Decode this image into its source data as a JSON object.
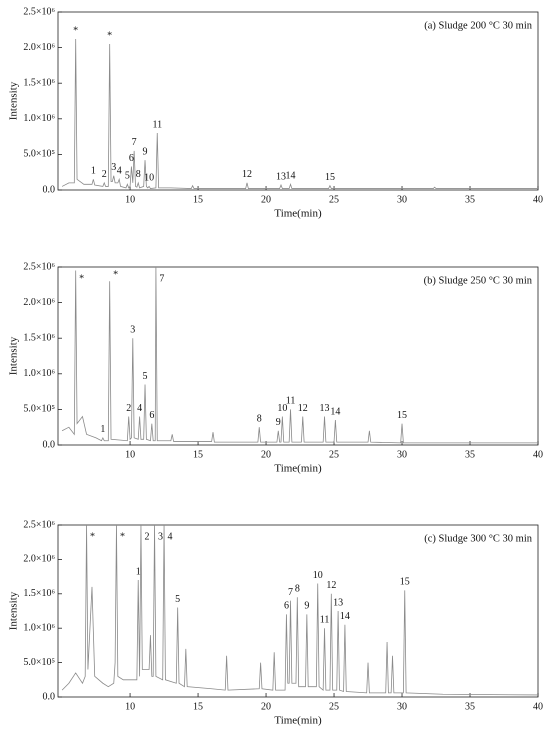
{
  "chart_data": [
    {
      "type": "line",
      "title": "(a) Sludge 200 °C 30 min",
      "x_label": "Time(min)",
      "y_label": "Intensity",
      "color": "#8a8a8a",
      "xlim": [
        4.7,
        40
      ],
      "xticks": [
        10,
        15,
        20,
        25,
        30,
        35,
        40
      ],
      "ylim": [
        0,
        2500000
      ],
      "yticks": [
        {
          "value": 0,
          "label": "0.0"
        },
        {
          "value": 500000,
          "label": "5.0×10⁵"
        },
        {
          "value": 1000000,
          "label": "1.0×10⁶"
        },
        {
          "value": 1500000,
          "label": "1.5×10⁶"
        },
        {
          "value": 2000000,
          "label": "2.0×10⁶"
        },
        {
          "value": 2500000,
          "label": "2.5×10⁶"
        }
      ],
      "x": [
        5,
        5.5,
        5.9,
        6,
        6.1,
        6.6,
        7.2,
        7.3,
        7.4,
        8,
        8.1,
        8.2,
        8.4,
        8.5,
        8.6,
        8.7,
        8.8,
        8.9,
        9.1,
        9.2,
        9.3,
        9.7,
        9.8,
        9.9,
        10,
        10.1,
        10.2,
        10.3,
        10.4,
        10.5,
        10.6,
        10.7,
        11,
        11.1,
        11.2,
        11.3,
        11.4,
        11.5,
        11.9,
        12,
        12.1,
        13,
        14.5,
        14.6,
        14.7,
        16,
        18.5,
        18.6,
        18.7,
        21,
        21.1,
        21.2,
        21.7,
        21.8,
        21.9,
        24.6,
        24.7,
        24.8,
        28,
        32.3,
        32.4,
        32.5,
        40
      ],
      "values": [
        50000,
        100000,
        100000,
        2120000,
        150000,
        80000,
        80000,
        150000,
        70000,
        50000,
        100000,
        50000,
        50000,
        2050000,
        120000,
        120000,
        200000,
        100000,
        100000,
        150000,
        50000,
        30000,
        80000,
        30000,
        50000,
        330000,
        100000,
        550000,
        50000,
        40000,
        100000,
        30000,
        50000,
        420000,
        50000,
        30000,
        50000,
        20000,
        30000,
        800000,
        30000,
        30000,
        20000,
        60000,
        20000,
        20000,
        20000,
        100000,
        20000,
        20000,
        70000,
        20000,
        20000,
        80000,
        20000,
        20000,
        60000,
        20000,
        20000,
        20000,
        40000,
        20000,
        20000
      ],
      "annotations": [
        {
          "text": "*",
          "x": 6,
          "y": 2120000
        },
        {
          "text": "*",
          "x": 8.5,
          "y": 2050000
        },
        {
          "text": "1",
          "x": 7.3,
          "y": 150000
        },
        {
          "text": "2",
          "x": 8.1,
          "y": 100000
        },
        {
          "text": "3",
          "x": 8.8,
          "y": 200000
        },
        {
          "text": "4",
          "x": 9.2,
          "y": 150000
        },
        {
          "text": "5",
          "x": 9.8,
          "y": 80000
        },
        {
          "text": "6",
          "x": 10.1,
          "y": 330000
        },
        {
          "text": "7",
          "x": 10.3,
          "y": 550000
        },
        {
          "text": "8",
          "x": 10.6,
          "y": 100000
        },
        {
          "text": "9",
          "x": 11.1,
          "y": 420000
        },
        {
          "text": "10",
          "x": 11.4,
          "y": 50000
        },
        {
          "text": "11",
          "x": 12,
          "y": 800000
        },
        {
          "text": "12",
          "x": 18.6,
          "y": 100000
        },
        {
          "text": "13",
          "x": 21.1,
          "y": 70000
        },
        {
          "text": "14",
          "x": 21.8,
          "y": 80000
        },
        {
          "text": "15",
          "x": 24.7,
          "y": 60000
        }
      ]
    },
    {
      "type": "line",
      "title": "(b) Sludge 250 °C 30 min",
      "x_label": "Time(min)",
      "y_label": "Intensity",
      "color": "#8a8a8a",
      "xlim": [
        4.7,
        40
      ],
      "xticks": [
        10,
        15,
        20,
        25,
        30,
        35,
        40
      ],
      "ylim": [
        0,
        2500000
      ],
      "yticks": [
        {
          "value": 0,
          "label": "0.0"
        },
        {
          "value": 500000,
          "label": "5.0×10⁵"
        },
        {
          "value": 1000000,
          "label": "1.0×10⁶"
        },
        {
          "value": 1500000,
          "label": "1.5×10⁶"
        },
        {
          "value": 2000000,
          "label": "2.0×10⁶"
        },
        {
          "value": 2500000,
          "label": "2.5×10⁶"
        }
      ],
      "x": [
        5,
        5.5,
        5.9,
        6,
        6.1,
        6.5,
        6.8,
        7.5,
        7.9,
        8,
        8.1,
        8.4,
        8.5,
        8.6,
        9.8,
        9.9,
        10,
        10.1,
        10.2,
        10.3,
        10.6,
        10.7,
        10.8,
        11,
        11.1,
        11.2,
        11.5,
        11.6,
        11.7,
        11.85,
        11.9,
        12,
        13,
        13.1,
        13.2,
        16,
        16.1,
        16.2,
        19.4,
        19.5,
        19.6,
        20.8,
        20.9,
        21,
        21.1,
        21.2,
        21.3,
        21.7,
        21.8,
        21.9,
        22.6,
        22.7,
        22.8,
        24.2,
        24.3,
        24.4,
        25,
        25.1,
        25.2,
        27.5,
        27.6,
        27.7,
        29.9,
        30,
        30.1,
        35,
        40
      ],
      "values": [
        200000,
        250000,
        150000,
        2450000,
        300000,
        400000,
        150000,
        100000,
        60000,
        100000,
        60000,
        60000,
        2300000,
        80000,
        60000,
        400000,
        80000,
        100000,
        1500000,
        100000,
        80000,
        400000,
        80000,
        80000,
        850000,
        80000,
        60000,
        300000,
        60000,
        60000,
        2500000,
        60000,
        60000,
        150000,
        50000,
        50000,
        180000,
        40000,
        40000,
        250000,
        40000,
        40000,
        200000,
        40000,
        40000,
        400000,
        40000,
        40000,
        500000,
        40000,
        40000,
        400000,
        40000,
        40000,
        400000,
        40000,
        40000,
        350000,
        40000,
        40000,
        200000,
        40000,
        30000,
        300000,
        30000,
        30000,
        30000
      ],
      "annotations": [
        {
          "text": "*",
          "x": 6,
          "y": 2450000
        },
        {
          "text": "*",
          "x": 8.5,
          "y": 2300000
        },
        {
          "text": "1",
          "x": 8,
          "y": 100000
        },
        {
          "text": "2",
          "x": 9.9,
          "y": 400000
        },
        {
          "text": "3",
          "x": 10.2,
          "y": 1500000
        },
        {
          "text": "4",
          "x": 10.7,
          "y": 400000
        },
        {
          "text": "5",
          "x": 11.1,
          "y": 850000
        },
        {
          "text": "6",
          "x": 11.6,
          "y": 300000
        },
        {
          "text": "7",
          "x": 11.9,
          "y": 2500000
        },
        {
          "text": "8",
          "x": 19.5,
          "y": 250000
        },
        {
          "text": "9",
          "x": 20.9,
          "y": 200000
        },
        {
          "text": "10",
          "x": 21.2,
          "y": 400000
        },
        {
          "text": "11",
          "x": 21.8,
          "y": 500000
        },
        {
          "text": "12",
          "x": 22.7,
          "y": 400000
        },
        {
          "text": "13",
          "x": 24.3,
          "y": 400000
        },
        {
          "text": "14",
          "x": 25.1,
          "y": 350000
        },
        {
          "text": "15",
          "x": 30,
          "y": 300000
        }
      ]
    },
    {
      "type": "line",
      "title": "(c) Sludge 300 °C 30 min",
      "x_label": "Time(min)",
      "y_label": "Intensity",
      "color": "#8a8a8a",
      "xlim": [
        4.7,
        40
      ],
      "xticks": [
        10,
        15,
        20,
        25,
        30,
        35,
        40
      ],
      "ylim": [
        0,
        2500000
      ],
      "yticks": [
        {
          "value": 0,
          "label": "0.0"
        },
        {
          "value": 500000,
          "label": "5.0×10⁵"
        },
        {
          "value": 1000000,
          "label": "1.0×10⁶"
        },
        {
          "value": 1500000,
          "label": "1.5×10⁶"
        },
        {
          "value": 2000000,
          "label": "2.0×10⁶"
        },
        {
          "value": 2500000,
          "label": "2.5×10⁶"
        }
      ],
      "x": [
        5,
        5.5,
        6,
        6.5,
        6.7,
        6.8,
        6.9,
        7.2,
        7.4,
        8,
        8.4,
        8.8,
        8.9,
        9,
        9.1,
        9.5,
        10.5,
        10.6,
        10.7,
        10.8,
        10.9,
        11.4,
        11.5,
        11.6,
        11.7,
        11.8,
        11.9,
        12.4,
        12.5,
        12.6,
        13.4,
        13.5,
        13.6,
        14,
        14.1,
        14.2,
        16,
        17,
        17.1,
        17.2,
        19.5,
        19.6,
        19.7,
        20.5,
        20.6,
        20.7,
        21.4,
        21.5,
        21.6,
        21.7,
        21.8,
        21.9,
        22.2,
        22.3,
        22.4,
        22.9,
        23,
        23.1,
        23.7,
        23.8,
        23.9,
        24.2,
        24.3,
        24.4,
        24.7,
        24.8,
        24.9,
        25.2,
        25.3,
        25.4,
        25.7,
        25.8,
        25.9,
        27.4,
        27.5,
        27.6,
        28.8,
        28.9,
        29,
        29.2,
        29.3,
        29.4,
        30.1,
        30.2,
        30.3,
        33,
        40
      ],
      "values": [
        100000,
        200000,
        350000,
        200000,
        300000,
        2500000,
        400000,
        1600000,
        300000,
        200000,
        150000,
        200000,
        500000,
        2500000,
        300000,
        250000,
        250000,
        1700000,
        300000,
        2500000,
        400000,
        400000,
        900000,
        300000,
        300000,
        2500000,
        300000,
        250000,
        2500000,
        250000,
        200000,
        1300000,
        200000,
        150000,
        700000,
        150000,
        120000,
        100000,
        600000,
        100000,
        120000,
        500000,
        120000,
        100000,
        650000,
        100000,
        100000,
        1200000,
        200000,
        200000,
        1400000,
        200000,
        200000,
        1450000,
        150000,
        150000,
        1200000,
        150000,
        150000,
        1650000,
        150000,
        100000,
        1000000,
        100000,
        100000,
        1500000,
        100000,
        100000,
        1250000,
        100000,
        80000,
        1050000,
        80000,
        60000,
        500000,
        60000,
        60000,
        800000,
        60000,
        60000,
        600000,
        60000,
        60000,
        1550000,
        60000,
        40000,
        30000
      ],
      "annotations": [
        {
          "text": "*",
          "x": 6.8,
          "y": 2500000
        },
        {
          "text": "*",
          "x": 9,
          "y": 2500000
        },
        {
          "text": "1",
          "x": 10.6,
          "y": 1700000
        },
        {
          "text": "2",
          "x": 10.8,
          "y": 2500000
        },
        {
          "text": "3",
          "x": 11.8,
          "y": 2500000
        },
        {
          "text": "4",
          "x": 12.5,
          "y": 2500000
        },
        {
          "text": "5",
          "x": 13.5,
          "y": 1300000
        },
        {
          "text": "6",
          "x": 21.5,
          "y": 1200000
        },
        {
          "text": "7",
          "x": 21.8,
          "y": 1400000
        },
        {
          "text": "8",
          "x": 22.3,
          "y": 1450000
        },
        {
          "text": "9",
          "x": 23,
          "y": 1200000
        },
        {
          "text": "10",
          "x": 23.8,
          "y": 1650000
        },
        {
          "text": "11",
          "x": 24.3,
          "y": 1000000
        },
        {
          "text": "12",
          "x": 24.8,
          "y": 1500000
        },
        {
          "text": "13",
          "x": 25.3,
          "y": 1250000
        },
        {
          "text": "14",
          "x": 25.8,
          "y": 1050000
        },
        {
          "text": "15",
          "x": 30.2,
          "y": 1550000
        }
      ]
    }
  ]
}
